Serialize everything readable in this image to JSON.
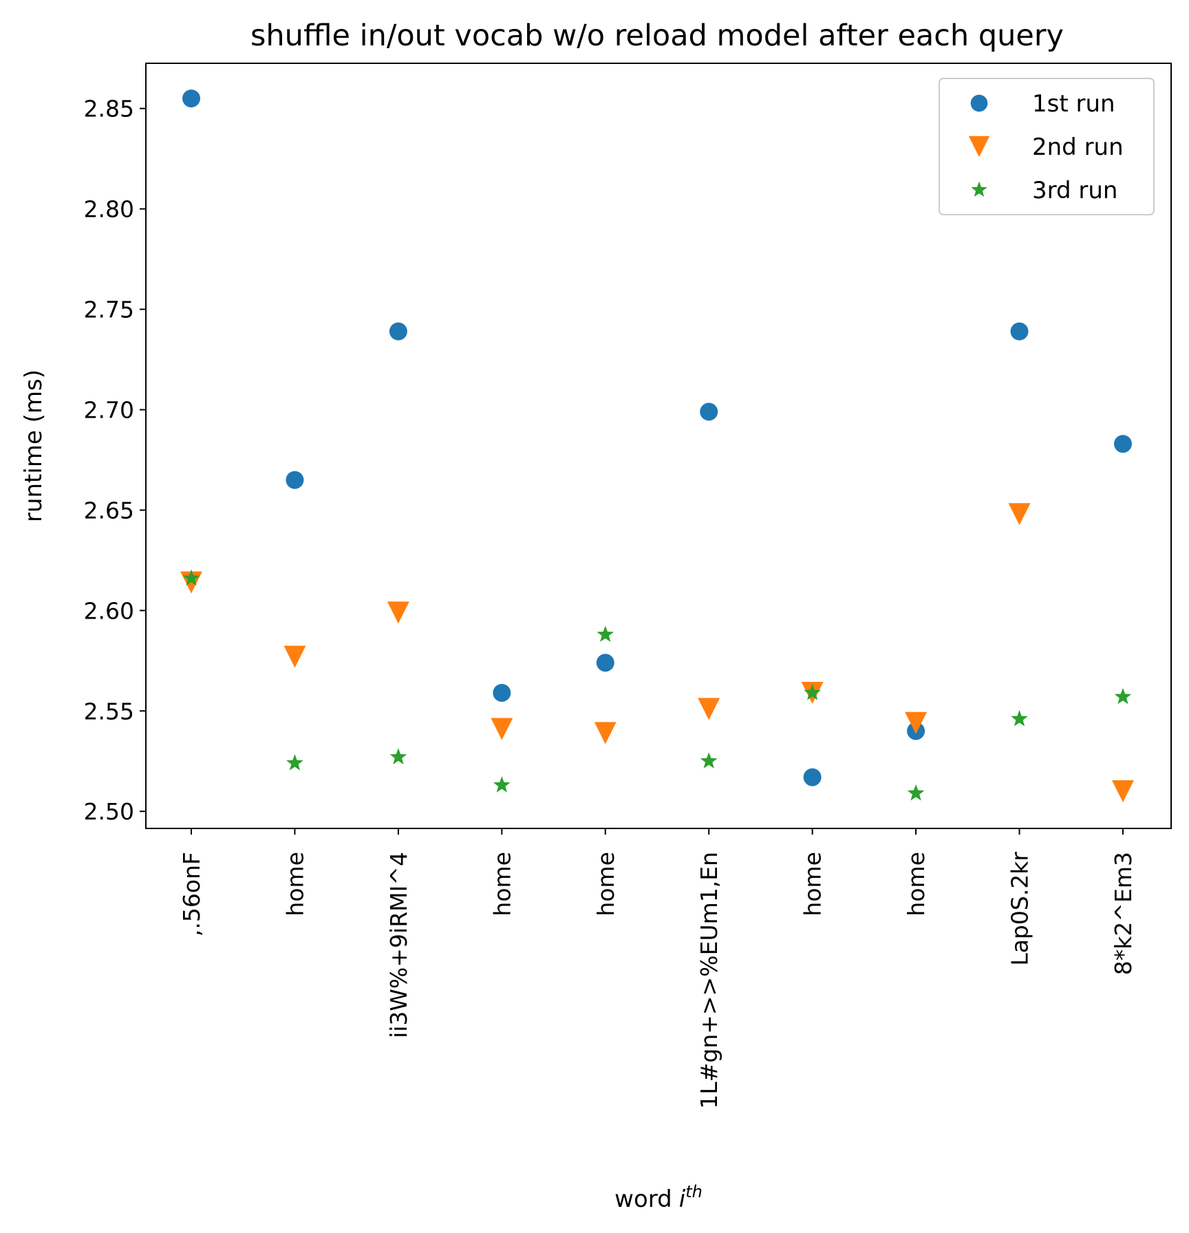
{
  "chart_data": {
    "type": "scatter",
    "title": "shuffle in/out vocab w/o reload model after each query",
    "xlabel": "word",
    "xlabel_italic": "i",
    "xlabel_superscript": "th",
    "ylabel": "runtime (ms)",
    "categories": [
      ",.56onF",
      "home",
      "ii3W%+9iRMI^4",
      "home",
      "home",
      "1L#gn+>>%EUm1,En",
      "home",
      "home",
      "Lap0S.2kr",
      "8*k2^Em3"
    ],
    "ylim": [
      2.4915,
      2.8725
    ],
    "yticks": [
      "2.50",
      "2.55",
      "2.60",
      "2.65",
      "2.70",
      "2.75",
      "2.80",
      "2.85"
    ],
    "grid": false,
    "legend_position": "top-right",
    "series": [
      {
        "name": "1st run",
        "marker": "circle",
        "color": "#1f77b4",
        "values": [
          2.855,
          2.665,
          2.739,
          2.559,
          2.574,
          2.699,
          2.517,
          2.54,
          2.739,
          2.683
        ]
      },
      {
        "name": "2nd run",
        "marker": "triangle-down",
        "color": "#ff7f0e",
        "values": [
          2.614,
          2.577,
          2.599,
          2.541,
          2.539,
          2.551,
          2.559,
          2.544,
          2.648,
          2.51
        ]
      },
      {
        "name": "3rd run",
        "marker": "star",
        "color": "#2ca02c",
        "values": [
          2.616,
          2.524,
          2.527,
          2.513,
          2.588,
          2.525,
          2.559,
          2.509,
          2.546,
          2.557
        ]
      }
    ]
  }
}
